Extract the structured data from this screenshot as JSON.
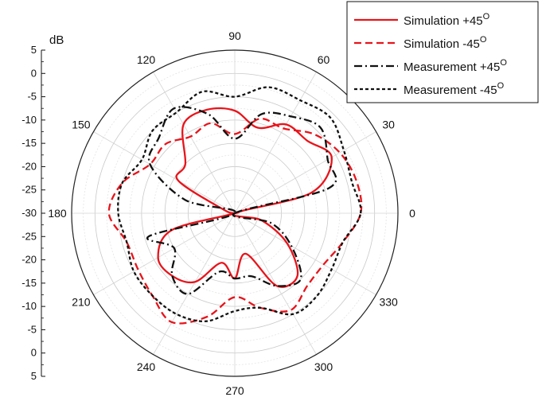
{
  "chart_data": {
    "type": "polar-line",
    "radial_unit": "dB",
    "radial_range": [
      -30,
      5
    ],
    "radial_major_ticks": [
      5,
      0,
      -5,
      -10,
      -15,
      -20,
      -25,
      -30
    ],
    "radial_tick_labels_upper": [
      "5",
      "0",
      "-5",
      "-10",
      "-15",
      "-20",
      "-25",
      "-30"
    ],
    "radial_tick_labels_lower": [
      "-25",
      "-20",
      "-15",
      "-10",
      "-5",
      "0",
      "5"
    ],
    "angle_labels": [
      "0",
      "30",
      "60",
      "90",
      "120",
      "150",
      "180",
      "210",
      "240",
      "270",
      "300",
      "330"
    ],
    "angle_label_values": [
      0,
      30,
      60,
      90,
      120,
      150,
      180,
      210,
      240,
      270,
      300,
      330
    ],
    "grid": true,
    "legend_position": "top-right",
    "theta": [
      0,
      15,
      30,
      45,
      60,
      75,
      90,
      105,
      120,
      135,
      150,
      165,
      180,
      195,
      210,
      225,
      240,
      255,
      270,
      285,
      300,
      315,
      330,
      345
    ],
    "series": [
      {
        "name": "Simulation +45",
        "color": "#e8141b",
        "style": "solid",
        "values": [
          -30,
          -13,
          -6,
          -8,
          -8,
          -11,
          -8,
          -7,
          -8,
          -15,
          -16,
          -28,
          -30,
          -16,
          -11,
          -11,
          -13,
          -19,
          -16,
          -21,
          -12,
          -11,
          -17,
          -24
        ]
      },
      {
        "name": "Simulation -45",
        "color": "#e8141b",
        "style": "dashed",
        "values": [
          -3,
          -3,
          -4,
          -6,
          -9,
          -9,
          -13,
          -10,
          -11,
          -9,
          -9,
          -5,
          -3,
          -6,
          -6,
          -5,
          -3,
          -7,
          -12,
          -9,
          -6,
          -8,
          -8,
          -6
        ]
      },
      {
        "name": "Measurement +45",
        "color": "#111111",
        "style": "dashdot",
        "values": [
          -30,
          -9,
          -7,
          -4,
          -6,
          -8,
          -14,
          -8,
          -4,
          -7,
          -9,
          -19,
          -30,
          -11,
          -15,
          -11,
          -10,
          -17,
          -16,
          -16,
          -12,
          -10,
          -16,
          -22
        ]
      },
      {
        "name": "Measurement -45",
        "color": "#111111",
        "style": "dotted",
        "values": [
          -3,
          -4,
          -3,
          -1,
          -2,
          -2,
          -5,
          -3,
          -5,
          -5,
          -7,
          -5,
          -5,
          -6,
          -5,
          -5,
          -5,
          -6,
          -9,
          -9,
          -5,
          -5,
          -6,
          -6
        ]
      }
    ],
    "legend": [
      {
        "label": "Simulation +45",
        "superscript": "O"
      },
      {
        "label": "Simulation -45",
        "superscript": "O"
      },
      {
        "label": "Measurement +45",
        "superscript": "O"
      },
      {
        "label": "Measurement -45",
        "superscript": "O"
      }
    ]
  }
}
